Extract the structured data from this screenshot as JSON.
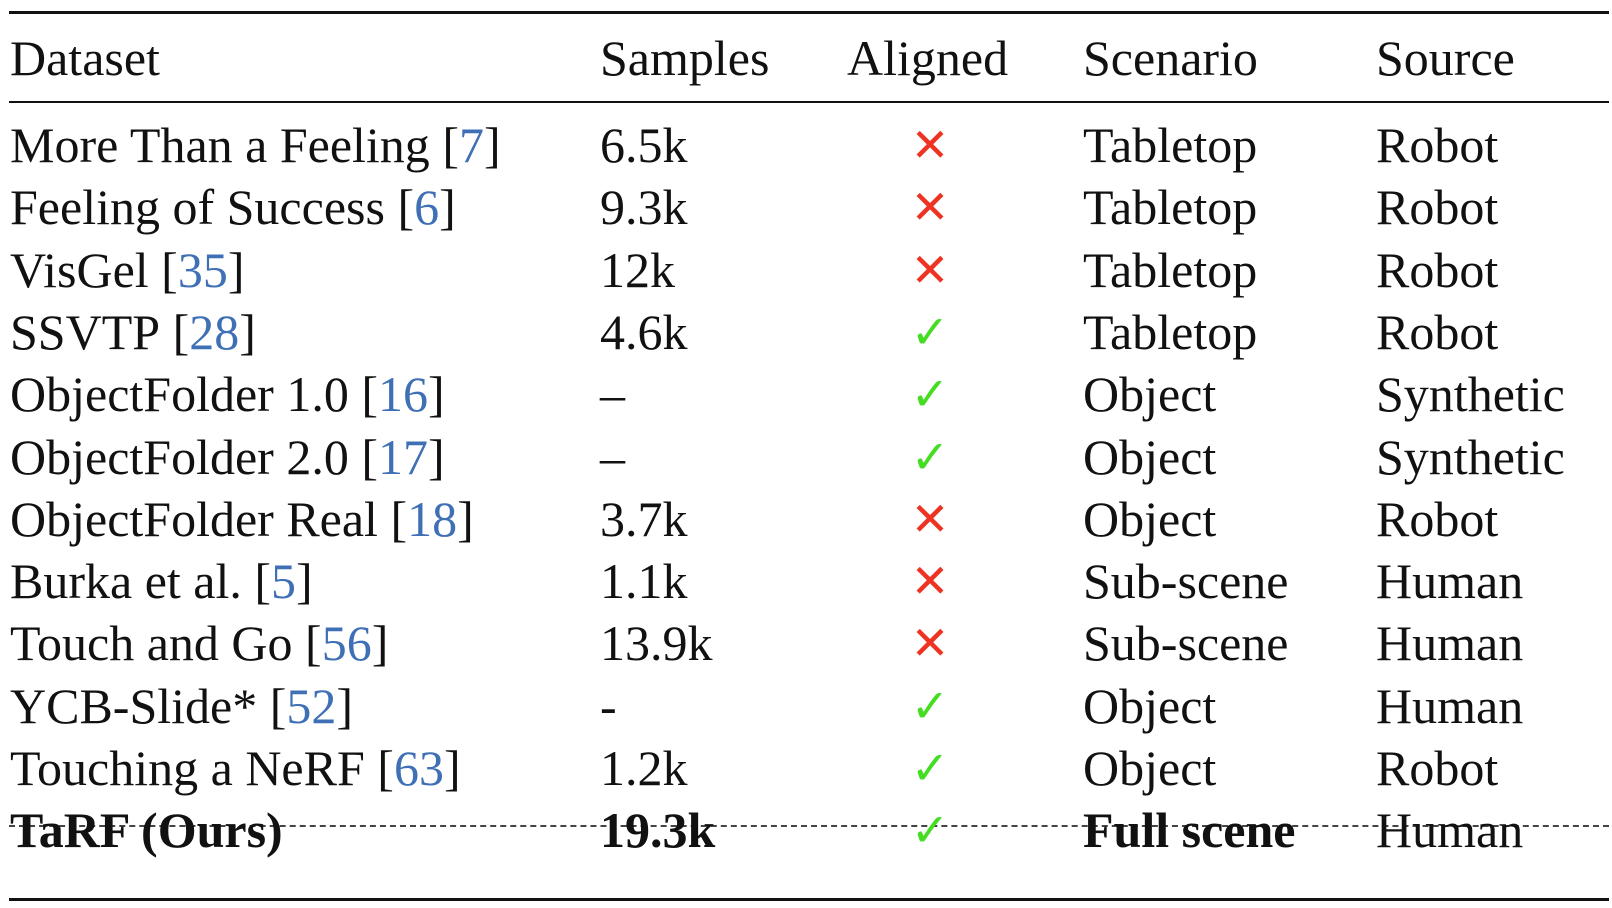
{
  "table": {
    "headers": {
      "dataset": "Dataset",
      "samples": "Samples",
      "aligned": "Aligned",
      "scenario": "Scenario",
      "source": "Source"
    },
    "rows": [
      {
        "name": "More Than a Feeling",
        "ref": "7",
        "samples": "6.5k",
        "aligned": "✕",
        "scenario": "Tabletop",
        "source": "Robot"
      },
      {
        "name": "Feeling of Success",
        "ref": "6",
        "samples": "9.3k",
        "aligned": "✕",
        "scenario": "Tabletop",
        "source": "Robot"
      },
      {
        "name": "VisGel",
        "ref": "35",
        "samples": "12k",
        "aligned": "✕",
        "scenario": "Tabletop",
        "source": "Robot"
      },
      {
        "name": "SSVTP",
        "ref": "28",
        "samples": "4.6k",
        "aligned": "✓",
        "scenario": "Tabletop",
        "source": "Robot"
      },
      {
        "name": "ObjectFolder 1.0",
        "ref": "16",
        "samples": "–",
        "aligned": "✓",
        "scenario": "Object",
        "source": "Synthetic"
      },
      {
        "name": "ObjectFolder 2.0",
        "ref": "17",
        "samples": "–",
        "aligned": "✓",
        "scenario": "Object",
        "source": "Synthetic"
      },
      {
        "name": "ObjectFolder Real",
        "ref": "18",
        "samples": "3.7k",
        "aligned": "✕",
        "scenario": "Object",
        "source": "Robot"
      },
      {
        "name": "Burka et al.",
        "ref": "5",
        "samples": "1.1k",
        "aligned": "✕",
        "scenario": "Sub-scene",
        "source": "Human"
      },
      {
        "name": "Touch and Go",
        "ref": "56",
        "samples": "13.9k",
        "aligned": "✕",
        "scenario": "Sub-scene",
        "source": "Human"
      },
      {
        "name": "YCB-Slide*",
        "ref": "52",
        "samples": "-",
        "aligned": "✓",
        "scenario": "Object",
        "source": "Human"
      },
      {
        "name": "Touching a NeRF",
        "ref": "63",
        "samples": "1.2k",
        "aligned": "✓",
        "scenario": "Object",
        "source": "Robot"
      }
    ],
    "ours": {
      "name": "TaRF (Ours)",
      "samples": "19.3k",
      "aligned": "✓",
      "scenario": "Full scene",
      "source": "Human"
    }
  },
  "colors": {
    "citation": "#3f6fb5",
    "check": "#44dd22",
    "cross": "#ee3322"
  }
}
